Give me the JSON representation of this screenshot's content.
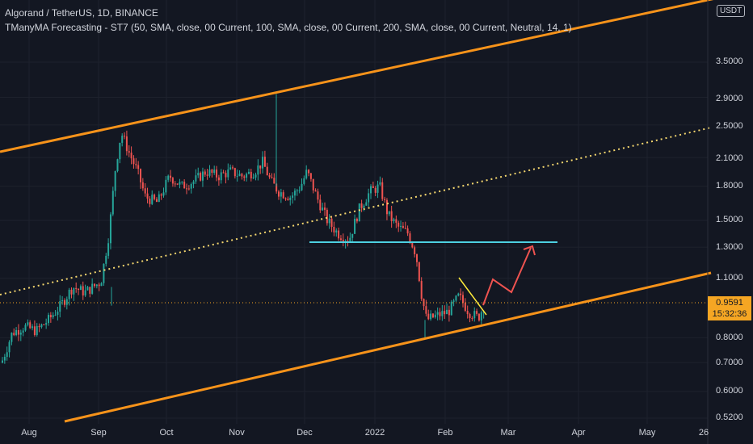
{
  "header": {
    "title": "Algorand / TetherUS, 1D, BINANCE",
    "indicator": "TManyMA Forecasting - ST7 (50, SMA, close, 00 Current, 100, SMA, close, 00 Current, 200, SMA, close, 00 Current, Neutral, 14, 1)"
  },
  "currency_badge": "USDT",
  "last_price": {
    "value": "0.9591",
    "countdown": "15:32:36"
  },
  "chart_data": {
    "type": "candlestick",
    "y_scale": "log",
    "ylim": [
      0.52,
      4.3
    ],
    "y_ticks": [
      "3.5000",
      "2.9000",
      "2.5000",
      "2.1000",
      "1.8000",
      "1.5000",
      "1.3000",
      "1.1000",
      "0.9591",
      "0.8000",
      "0.7000",
      "0.6000",
      "0.5200"
    ],
    "x_ticks": [
      "Aug",
      "Sep",
      "Oct",
      "Nov",
      "Dec",
      "2022",
      "Feb",
      "Mar",
      "Apr",
      "May",
      "26"
    ],
    "series_summary": {
      "start_price": 0.75,
      "peak_price": 2.5,
      "spike_high": 2.95,
      "horizontal_support": 1.32,
      "recent_low": 0.83,
      "current": 0.9591
    },
    "colors": {
      "up": "#26a69a",
      "down": "#ef5350",
      "channel": "#f7931a",
      "midline": "#f5d76e",
      "support": "#4dd0e1",
      "forecast": "#ef5350",
      "triangle": "#ffeb3b"
    }
  }
}
